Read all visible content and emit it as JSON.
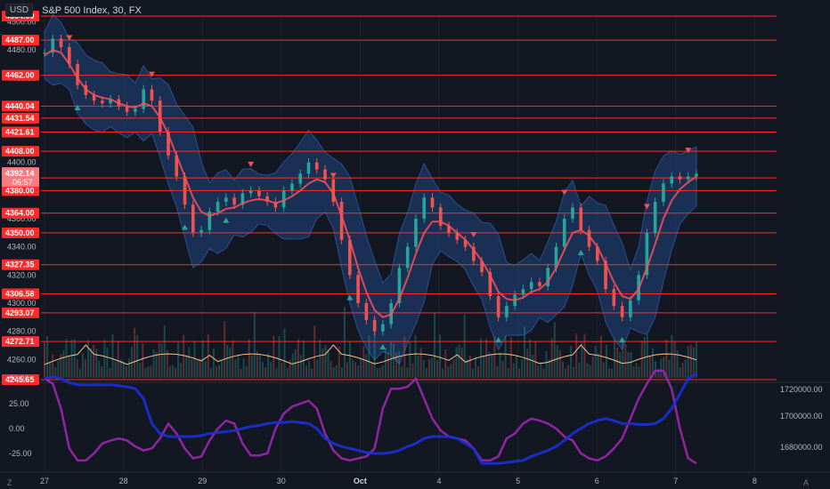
{
  "header": {
    "currency": "USD",
    "symbol": "S&P 500 Index, 30, FX"
  },
  "footer": {
    "left_btn": "Z",
    "right_btn": "A"
  },
  "colors": {
    "bg": "#131722",
    "up": "#26a69a",
    "down": "#ef5350",
    "level": "#ff2a2a",
    "band": "#1c3a66",
    "ma": "#ff4f5a",
    "osc_purple": "#9c27b0",
    "osc_blue": "#1a30d8",
    "vol_line": "#f5c08c"
  },
  "chart_data": [
    {
      "type": "line",
      "title": "S&P 500 Index, 30, FX",
      "ylim": [
        4245,
        4506
      ],
      "y_ticks": [
        4260,
        4280,
        4300,
        4320,
        4340,
        4360,
        4380,
        4400,
        4420,
        4440,
        4460,
        4480,
        4500
      ],
      "x_labels": [
        "27",
        "28",
        "29",
        "30",
        "Oct",
        "4",
        "5",
        "6",
        "7",
        "8"
      ],
      "levels": [
        4504.0,
        4487.0,
        4462.0,
        4440.04,
        4431.54,
        4421.61,
        4408.0,
        4389.0,
        4380.0,
        4364.0,
        4350.0,
        4327.35,
        4306.58,
        4293.07,
        4272.71,
        4245.65
      ],
      "current_price": {
        "value": "4392.14",
        "countdown": "06:57"
      },
      "series": [
        {
          "values": [
            4478,
            4488,
            4482,
            4470,
            4455,
            4448,
            4444,
            4442,
            4445,
            4440,
            4436,
            4438,
            4452,
            4444,
            4422,
            4405,
            4390,
            4370,
            4350,
            4352,
            4365,
            4372,
            4375,
            4370,
            4378,
            4380,
            4376,
            4372,
            4368,
            4380,
            4385,
            4392,
            4400,
            4395,
            4388,
            4372,
            4345,
            4320,
            4300,
            4288,
            4280,
            4285,
            4300,
            4325,
            4340,
            4360,
            4375,
            4368,
            4355,
            4350,
            4345,
            4340,
            4330,
            4322,
            4305,
            4290,
            4298,
            4306,
            4310,
            4315,
            4312,
            4325,
            4340,
            4360,
            4368,
            4352,
            4340,
            4330,
            4310,
            4298,
            4290,
            4302,
            4320,
            4350,
            4372,
            4385,
            4390,
            4388,
            4390,
            4392
          ]
        },
        {
          "values": [
            4476,
            4480,
            4478,
            4470,
            4460,
            4452,
            4448,
            4446,
            4445,
            4442,
            4440,
            4439,
            4442,
            4440,
            4432,
            4420,
            4405,
            4390,
            4375,
            4365,
            4362,
            4364,
            4367,
            4368,
            4371,
            4373,
            4374,
            4373,
            4371,
            4373,
            4376,
            4380,
            4385,
            4388,
            4386,
            4378,
            4362,
            4345,
            4325,
            4308,
            4295,
            4290,
            4292,
            4303,
            4318,
            4335,
            4350,
            4358,
            4358,
            4355,
            4350,
            4345,
            4338,
            4330,
            4320,
            4308,
            4303,
            4302,
            4304,
            4308,
            4310,
            4315,
            4325,
            4338,
            4350,
            4352,
            4348,
            4340,
            4328,
            4315,
            4305,
            4303,
            4310,
            4325,
            4342,
            4360,
            4373,
            4381,
            4386,
            4390
          ]
        }
      ]
    },
    {
      "type": "line",
      "y_ticks_left": [
        50.0,
        25.0,
        0.0,
        -25.0
      ],
      "y_ticks_right": [
        1720000.0,
        1700000.0,
        1680000.0
      ],
      "series": [
        {
          "values": [
            50,
            45,
            20,
            -20,
            -32,
            -32,
            -25,
            -15,
            -12,
            -10,
            -12,
            -18,
            -22,
            -20,
            -10,
            5,
            -5,
            -20,
            -30,
            -28,
            -12,
            0,
            8,
            5,
            -15,
            -27,
            -27,
            -25,
            0,
            15,
            22,
            25,
            28,
            20,
            -5,
            -22,
            -30,
            -32,
            -30,
            -28,
            -20,
            20,
            40,
            40,
            42,
            50,
            30,
            10,
            -2,
            -8,
            -10,
            -12,
            -20,
            -32,
            -32,
            -28,
            -10,
            -5,
            5,
            10,
            8,
            5,
            0,
            -8,
            -12,
            -25,
            -30,
            -32,
            -28,
            -20,
            -10,
            10,
            30,
            45,
            58,
            58,
            40,
            0,
            -30,
            -35
          ]
        },
        {
          "values": [
            50,
            52,
            50,
            46,
            44,
            44,
            44,
            44,
            44,
            43,
            42,
            40,
            30,
            5,
            -5,
            -8,
            -8,
            -8,
            -8,
            -7,
            -5,
            -4,
            -3,
            -2,
            0,
            2,
            3,
            5,
            6,
            6,
            7,
            6,
            5,
            0,
            -10,
            -15,
            -18,
            -20,
            -22,
            -24,
            -25,
            -25,
            -24,
            -22,
            -18,
            -15,
            -10,
            -8,
            -8,
            -8,
            -10,
            -15,
            -20,
            -35,
            -35,
            -35,
            -34,
            -33,
            -32,
            -28,
            -25,
            -22,
            -18,
            -12,
            -5,
            0,
            5,
            8,
            10,
            8,
            5,
            5,
            4,
            4,
            5,
            10,
            20,
            35,
            50,
            55
          ]
        }
      ]
    }
  ]
}
